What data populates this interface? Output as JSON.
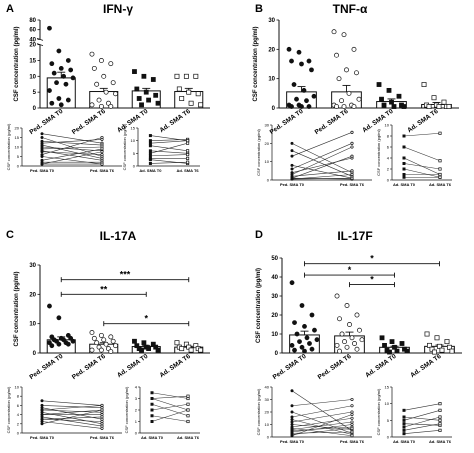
{
  "chart_data": [
    {
      "panel": "A",
      "type": "bar",
      "title": "IFN-γ",
      "ylabel": "CSF concentration (pg/ml)",
      "ylim": [
        0,
        80
      ],
      "y_break": [
        20,
        40
      ],
      "y_ticks_lower": [
        "0",
        "5",
        "10",
        "15",
        "20"
      ],
      "y_ticks_upper": [
        "40",
        "60",
        "80"
      ],
      "categories": [
        "Ped. SMA T0",
        "Ped. SMA T6",
        "Ad. SMA T0",
        "Ad. SMA T6"
      ],
      "means": [
        9.5,
        5.2,
        5.4,
        5.2
      ],
      "sems": [
        1.8,
        1.0,
        0.8,
        1.0
      ],
      "points": [
        [
          63,
          18,
          15,
          14,
          12.5,
          12,
          11,
          10,
          9.5,
          8,
          7.5,
          5.5,
          3,
          2.5,
          1.5,
          1
        ],
        [
          17,
          15,
          14,
          12.5,
          10,
          8,
          7.5,
          5,
          4.5,
          2.5,
          1.5,
          1,
          0.5,
          0.5
        ],
        [
          11.5,
          10,
          9,
          6,
          5,
          4,
          3,
          2.5,
          1.5,
          1
        ],
        [
          10,
          10,
          10,
          6,
          5,
          4.5,
          3,
          1.5,
          1
        ]
      ],
      "significance": [],
      "paired": [
        {
          "categories": [
            "Ped. SMA T0",
            "Ped. SMA T6"
          ],
          "ylabel": "CSF concentration (pg/ml)",
          "ylim": [
            0,
            20
          ],
          "y_ticks": [
            "0",
            "5",
            "10",
            "15",
            "20"
          ],
          "pairs": [
            [
              17,
              12
            ],
            [
              15,
              5
            ],
            [
              13,
              11
            ],
            [
              12,
              14
            ],
            [
              11,
              4
            ],
            [
              10,
              8
            ],
            [
              9,
              10
            ],
            [
              8,
              3
            ],
            [
              7.5,
              6
            ],
            [
              6,
              15
            ],
            [
              5,
              1
            ],
            [
              3,
              9
            ],
            [
              2,
              2
            ],
            [
              1,
              7.5
            ],
            [
              1,
              1
            ]
          ]
        },
        {
          "categories": [
            "Ad. SMA T0",
            "Ad. SMA T6"
          ],
          "ylabel": "CSF concentration (pg/ml)",
          "ylim": [
            0,
            15
          ],
          "y_ticks": [
            "0",
            "5",
            "10",
            "15"
          ],
          "pairs": [
            [
              12,
              10
            ],
            [
              10,
              10.5
            ],
            [
              9,
              10
            ],
            [
              8,
              6
            ],
            [
              6,
              5
            ],
            [
              5,
              9
            ],
            [
              4,
              4.5
            ],
            [
              3,
              3
            ],
            [
              2.5,
              1
            ],
            [
              1,
              1.5
            ]
          ]
        }
      ]
    },
    {
      "panel": "B",
      "type": "bar",
      "title": "TNF-α",
      "ylabel": "CSF concentration (pg/ml)",
      "ylim": [
        0,
        30
      ],
      "y_ticks": [
        "0",
        "10",
        "20",
        "30"
      ],
      "categories": [
        "Ped. SMA T0",
        "Ped. SMA T6",
        "Ad. SMA T0",
        "Ad. SMA T6"
      ],
      "means": [
        5.5,
        5.5,
        2.2,
        1.2
      ],
      "sems": [
        1.8,
        2.2,
        0.9,
        0.7
      ],
      "points": [
        [
          20,
          19,
          16,
          16,
          15,
          13,
          8,
          6,
          4,
          3,
          2.5,
          1,
          1,
          0.5,
          0.5,
          0.5
        ],
        [
          26,
          25,
          20,
          18,
          13,
          12,
          10,
          5,
          3,
          2.5,
          1,
          1,
          0.5,
          0.5,
          0.5
        ],
        [
          8,
          6,
          4,
          3,
          2,
          1,
          1,
          0.5,
          0.5
        ],
        [
          8,
          3.5,
          2,
          1,
          1,
          0.5,
          0.5,
          0.5,
          0.5
        ]
      ],
      "significance": [],
      "paired": [
        {
          "categories": [
            "Ped. SMA T0",
            "Ped. SMA T6"
          ],
          "ylabel": "CSF concentration (pg/ml)",
          "ylim": [
            0,
            30
          ],
          "y_ticks": [
            "0",
            "10",
            "20",
            "30"
          ],
          "pairs": [
            [
              20,
              4
            ],
            [
              16,
              2
            ],
            [
              13,
              26
            ],
            [
              8,
              1
            ],
            [
              6,
              20
            ],
            [
              4,
              12
            ],
            [
              3,
              18
            ],
            [
              2,
              5
            ],
            [
              1,
              13
            ],
            [
              1,
              0.5
            ],
            [
              0.5,
              3
            ],
            [
              0.5,
              1
            ]
          ]
        },
        {
          "categories": [
            "Ad. SMA T0",
            "Ad. SMA T6"
          ],
          "ylabel": "CSF concentration (pg/ml)",
          "ylim": [
            0,
            10
          ],
          "y_ticks": [
            "0",
            "2",
            "4",
            "6",
            "8",
            "10"
          ],
          "pairs": [
            [
              8,
              8.5
            ],
            [
              6,
              3.5
            ],
            [
              4,
              1
            ],
            [
              3,
              2
            ],
            [
              2,
              0.5
            ],
            [
              1,
              1
            ],
            [
              0.5,
              0.5
            ]
          ]
        }
      ]
    },
    {
      "panel": "C",
      "type": "bar",
      "title": "IL-17A",
      "ylabel": "CSF concentration (pg/ml)",
      "ylim": [
        0,
        30
      ],
      "y_ticks": [
        "0",
        "10",
        "20",
        "30"
      ],
      "categories": [
        "Ped. SMA T0",
        "Ped. SMA T6",
        "Ad. SMA T0",
        "Ad. SMA T6"
      ],
      "means": [
        4.5,
        3.0,
        2.2,
        2.0
      ],
      "sems": [
        1.0,
        0.5,
        0.4,
        0.3
      ],
      "points": [
        [
          16,
          12,
          6,
          5.5,
          5,
          5,
          4.5,
          4.5,
          4,
          4,
          3.5,
          3.5,
          3,
          3,
          2.5
        ],
        [
          7,
          6,
          5.5,
          5,
          4.5,
          4,
          3.5,
          3,
          2.5,
          2,
          1.5,
          1,
          1,
          0.5
        ],
        [
          4,
          3.5,
          3,
          2.5,
          2,
          2,
          1.5,
          1.5,
          1,
          1
        ],
        [
          3.5,
          3,
          2.5,
          2,
          2,
          1.5,
          1.5,
          1,
          1
        ]
      ],
      "significance": [
        {
          "from": 0,
          "to": 3,
          "label": "***",
          "y": 25
        },
        {
          "from": 0,
          "to": 2,
          "label": "**",
          "y": 20
        },
        {
          "from": 1,
          "to": 3,
          "label": "*",
          "y": 10
        }
      ],
      "paired": [
        {
          "categories": [
            "Ped. SMA T0",
            "Ped. SMA T6"
          ],
          "ylabel": "CSF concentration (pg/ml)",
          "ylim": [
            0,
            10
          ],
          "y_ticks": [
            "0",
            "2",
            "4",
            "6",
            "8",
            "10"
          ],
          "pairs": [
            [
              7,
              6
            ],
            [
              6,
              5.5
            ],
            [
              5.5,
              3
            ],
            [
              5,
              4.5
            ],
            [
              5,
              6
            ],
            [
              4.5,
              2
            ],
            [
              4,
              5
            ],
            [
              4,
              4
            ],
            [
              3.5,
              1.5
            ],
            [
              3,
              3.5
            ],
            [
              3,
              2.5
            ],
            [
              2.5,
              1
            ],
            [
              2,
              5
            ]
          ]
        },
        {
          "categories": [
            "Ad. SMA T0",
            "Ad. SMA T6"
          ],
          "ylabel": "CSF concentration (pg/ml)",
          "ylim": [
            0,
            4
          ],
          "y_ticks": [
            "0",
            "1",
            "2",
            "3",
            "4"
          ],
          "pairs": [
            [
              3.5,
              3
            ],
            [
              3,
              2
            ],
            [
              3,
              3.2
            ],
            [
              2.5,
              1.5
            ],
            [
              2,
              2.5
            ],
            [
              1.5,
              1
            ],
            [
              1,
              2
            ]
          ]
        }
      ]
    },
    {
      "panel": "D",
      "type": "bar",
      "title": "IL-17F",
      "ylabel": "CSF concentration (pg/ml)",
      "ylim": [
        0,
        50
      ],
      "y_ticks": [
        "0",
        "10",
        "20",
        "30",
        "40",
        "50"
      ],
      "categories": [
        "Ped. SMA T0",
        "Ped. SMA T6",
        "Ad. SMA T0",
        "Ad. SMA T6"
      ],
      "means": [
        9.5,
        9.0,
        3.0,
        3.5
      ],
      "sems": [
        2.0,
        2.0,
        0.6,
        0.7
      ],
      "points": [
        [
          37,
          25,
          20,
          16,
          14,
          12,
          10,
          8,
          7,
          6,
          5,
          4,
          3,
          2,
          1.5,
          1
        ],
        [
          30,
          25,
          20,
          18,
          15,
          12,
          10,
          8,
          7,
          6,
          5,
          4,
          3,
          2,
          1
        ],
        [
          8,
          6,
          5,
          4,
          3,
          2,
          1.5,
          1,
          1,
          0.5
        ],
        [
          10,
          8,
          6,
          4,
          3.5,
          3,
          2,
          1.5,
          1,
          0.5
        ]
      ],
      "significance": [
        {
          "from": 0,
          "to": 3,
          "label": "*",
          "y": 47
        },
        {
          "from": 0,
          "to": 2,
          "label": "*",
          "y": 41
        },
        {
          "from": 1,
          "to": 2,
          "label": "*",
          "y": 36
        }
      ],
      "paired": [
        {
          "categories": [
            "Ped. SMA T0",
            "Ped. SMA T6"
          ],
          "ylabel": "CSF concentration (pg/ml)",
          "ylim": [
            0,
            40
          ],
          "y_ticks": [
            "0",
            "10",
            "20",
            "30",
            "40"
          ],
          "pairs": [
            [
              37,
              5
            ],
            [
              25,
              30
            ],
            [
              20,
              3
            ],
            [
              16,
              25
            ],
            [
              14,
              2
            ],
            [
              12,
              20
            ],
            [
              10,
              6
            ],
            [
              8,
              15
            ],
            [
              7,
              1
            ],
            [
              6,
              12
            ],
            [
              5,
              8
            ],
            [
              4,
              10
            ],
            [
              3,
              4
            ],
            [
              2,
              7
            ],
            [
              1,
              18
            ]
          ]
        },
        {
          "categories": [
            "Ad. SMA T0",
            "Ad. SMA T6"
          ],
          "ylabel": "CSF concentration (pg/ml)",
          "ylim": [
            0,
            15
          ],
          "y_ticks": [
            "0",
            "5",
            "10",
            "15"
          ],
          "pairs": [
            [
              8,
              10
            ],
            [
              6,
              5
            ],
            [
              5,
              8
            ],
            [
              4,
              3.5
            ],
            [
              3,
              6
            ],
            [
              2,
              4
            ],
            [
              1,
              2
            ]
          ]
        }
      ]
    }
  ]
}
